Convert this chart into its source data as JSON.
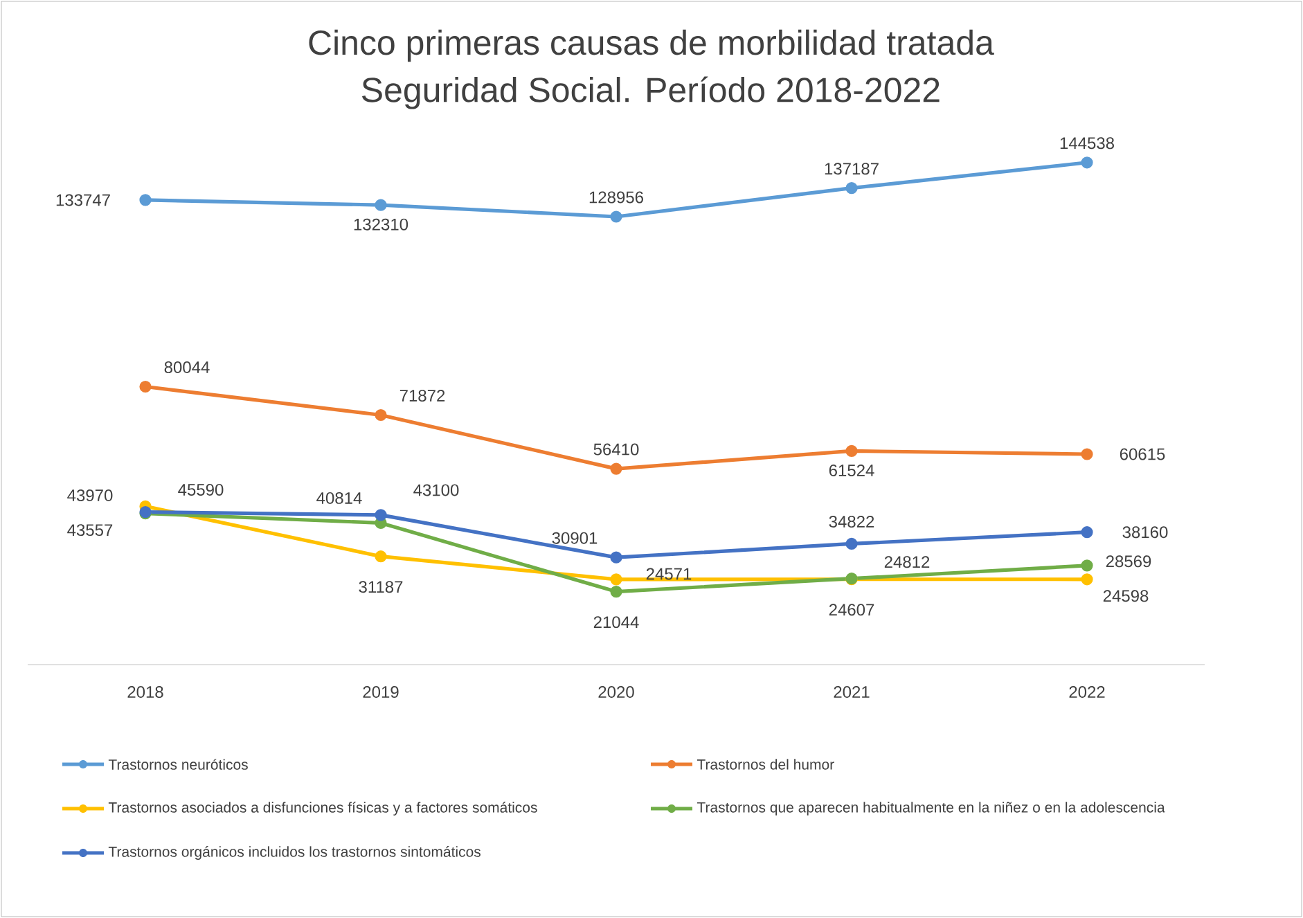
{
  "chart_data": {
    "type": "line",
    "title": "Cinco primeras causas de morbilidad tratada",
    "subtitle": "Seguridad Social. Período 2018-2022",
    "categories": [
      "2018",
      "2019",
      "2020",
      "2021",
      "2022"
    ],
    "series": [
      {
        "name": "Trastornos neuróticos",
        "color": "#5b9bd5",
        "values": [
          133747,
          132310,
          128956,
          137187,
          144538
        ]
      },
      {
        "name": "Trastornos del humor",
        "color": "#ed7d31",
        "values": [
          80044,
          71872,
          56410,
          61524,
          60615
        ]
      },
      {
        "name": "Trastornos asociados a disfunciones físicas y a factores somáticos",
        "color": "#ffc000",
        "values": [
          45590,
          31187,
          24571,
          24607,
          24598
        ]
      },
      {
        "name": "Trastornos que aparecen habitualmente en la niñez o en la adolescencia",
        "color": "#70ad47",
        "values": [
          43557,
          40814,
          21044,
          24812,
          28569
        ]
      },
      {
        "name": "Trastornos orgánicos incluidos los trastornos sintomáticos",
        "color": "#4472c4",
        "values": [
          43970,
          43100,
          30901,
          34822,
          38160
        ]
      }
    ],
    "tick_labels": "x",
    "data_labels": true,
    "legend": "bottom",
    "marker": "circle",
    "line_style": "solid",
    "grid": false
  }
}
